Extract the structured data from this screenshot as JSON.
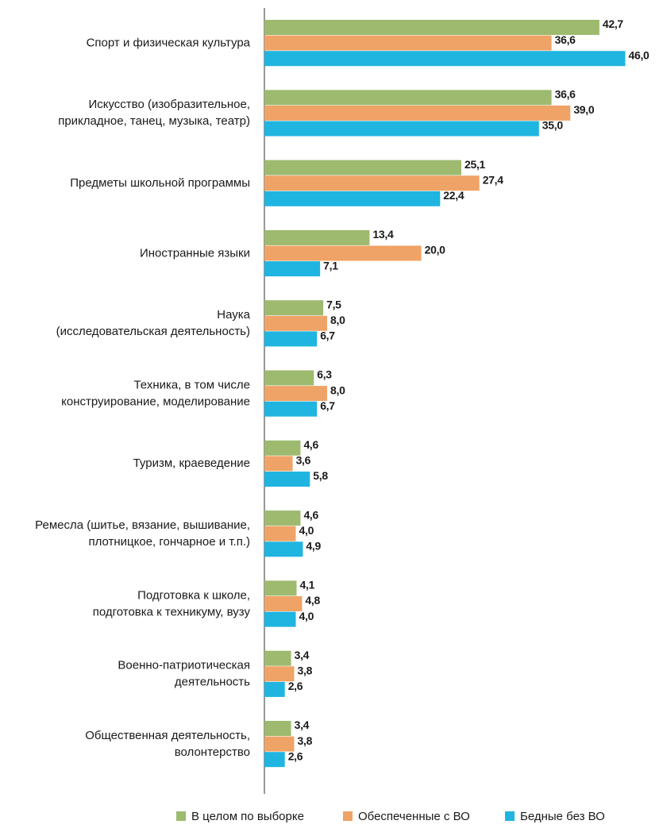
{
  "chart_data": {
    "type": "hbar",
    "categories": [
      [
        "Спорт и физическая культура"
      ],
      [
        "Искусство (изобразительное,",
        "прикладное, танец, музыка, театр)"
      ],
      [
        "Предметы школьной программы"
      ],
      [
        "Иностранные языки"
      ],
      [
        "Наука",
        "(исследовательская деятельность)"
      ],
      [
        "Техника, в том числе",
        "конструирование, моделирование"
      ],
      [
        "Туризм, краеведение"
      ],
      [
        "Ремесла (шитье, вязание, вышивание,",
        "плотницкое, гончарное и т.п.)"
      ],
      [
        "Подготовка к школе,",
        "подготовка к техникуму, вузу"
      ],
      [
        "Военно-патриотическая",
        "деятельность"
      ],
      [
        "Общественная деятельность,",
        "волонтерство"
      ]
    ],
    "series": [
      {
        "name": "В целом по выборке",
        "color": "#9dba6f",
        "values": [
          42.7,
          36.6,
          25.1,
          13.4,
          7.5,
          6.3,
          4.6,
          4.6,
          4.1,
          3.4,
          3.4
        ],
        "value_labels": [
          "42,7",
          "36,6",
          "25,1",
          "13,4",
          "7,5",
          "6,3",
          "4,6",
          "4,6",
          "4,1",
          "3,4",
          "3,4"
        ]
      },
      {
        "name": "Обеспеченные с ВО",
        "color": "#f0a366",
        "values": [
          36.6,
          39.0,
          27.4,
          20.0,
          8.0,
          8.0,
          3.6,
          4.0,
          4.8,
          3.8,
          3.8
        ],
        "value_labels": [
          "36,6",
          "39,0",
          "27,4",
          "20,0",
          "8,0",
          "8,0",
          "3,6",
          "4,0",
          "4,8",
          "3,8",
          "3,8"
        ]
      },
      {
        "name": "Бедные без ВО",
        "color": "#1fb5e0",
        "values": [
          46.0,
          35.0,
          22.4,
          7.1,
          6.7,
          6.7,
          5.8,
          4.9,
          4.0,
          2.6,
          2.6
        ],
        "value_labels": [
          "46,0",
          "35,0",
          "22,4",
          "7,1",
          "6,7",
          "6,7",
          "5,8",
          "4,9",
          "4,0",
          "2,6",
          "2,6"
        ]
      }
    ],
    "xlim": [
      0,
      50
    ]
  }
}
